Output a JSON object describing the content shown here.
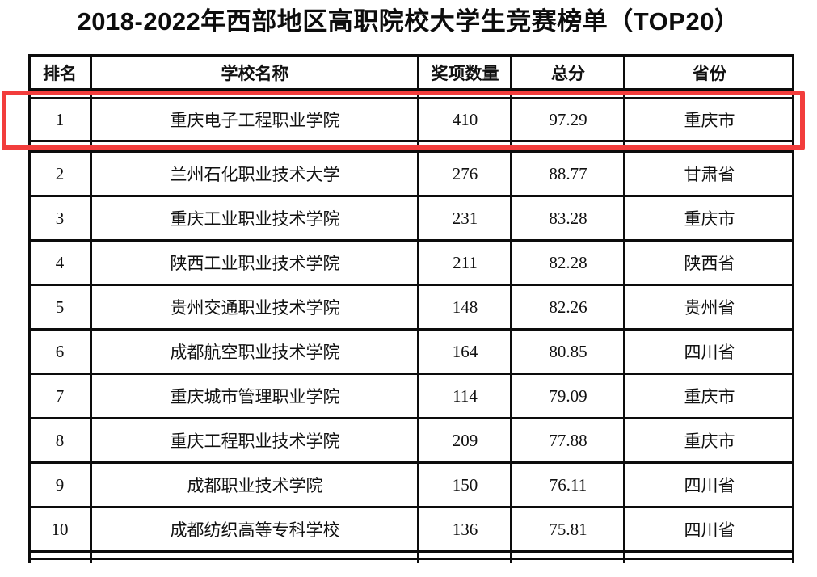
{
  "title": "2018-2022年西部地区高职院校大学生竞赛榜单（TOP20）",
  "highlight": {
    "color": "#f23d3c",
    "highlighted_rank": "1"
  },
  "table": {
    "headers": [
      "排名",
      "学校名称",
      "奖项数量",
      "总分",
      "省份"
    ],
    "rows": [
      {
        "rank": "1",
        "school": "重庆电子工程职业学院",
        "awards": "410",
        "score": "97.29",
        "province": "重庆市",
        "highlighted": true
      },
      {
        "rank": "2",
        "school": "兰州石化职业技术大学",
        "awards": "276",
        "score": "88.77",
        "province": "甘肃省",
        "highlighted": false
      },
      {
        "rank": "3",
        "school": "重庆工业职业技术学院",
        "awards": "231",
        "score": "83.28",
        "province": "重庆市",
        "highlighted": false
      },
      {
        "rank": "4",
        "school": "陕西工业职业技术学院",
        "awards": "211",
        "score": "82.28",
        "province": "陕西省",
        "highlighted": false
      },
      {
        "rank": "5",
        "school": "贵州交通职业技术学院",
        "awards": "148",
        "score": "82.26",
        "province": "贵州省",
        "highlighted": false
      },
      {
        "rank": "6",
        "school": "成都航空职业技术学院",
        "awards": "164",
        "score": "80.85",
        "province": "四川省",
        "highlighted": false
      },
      {
        "rank": "7",
        "school": "重庆城市管理职业学院",
        "awards": "114",
        "score": "79.09",
        "province": "重庆市",
        "highlighted": false
      },
      {
        "rank": "8",
        "school": "重庆工程职业技术学院",
        "awards": "209",
        "score": "77.88",
        "province": "重庆市",
        "highlighted": false
      },
      {
        "rank": "9",
        "school": "成都职业技术学院",
        "awards": "150",
        "score": "76.11",
        "province": "四川省",
        "highlighted": false
      },
      {
        "rank": "10",
        "school": "成都纺织高等专科学校",
        "awards": "136",
        "score": "75.81",
        "province": "四川省",
        "highlighted": false
      }
    ]
  }
}
